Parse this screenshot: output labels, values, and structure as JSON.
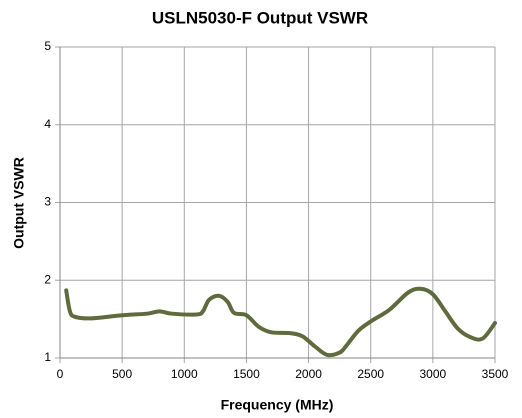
{
  "chart_data": {
    "type": "line",
    "title": "USLN5030-F Output VSWR",
    "x_label": "Frequency (MHz)",
    "y_label": "Output  VSWR",
    "x": [
      50,
      80,
      120,
      250,
      500,
      700,
      800,
      900,
      1100,
      1150,
      1200,
      1280,
      1350,
      1400,
      1500,
      1600,
      1700,
      1850,
      1950,
      2050,
      2150,
      2250,
      2300,
      2400,
      2500,
      2650,
      2800,
      2900,
      3000,
      3100,
      3200,
      3300,
      3400,
      3500
    ],
    "series": [
      {
        "name": "Output VSWR",
        "color": "#5f6b3c",
        "values": [
          1.87,
          1.6,
          1.53,
          1.51,
          1.55,
          1.57,
          1.6,
          1.57,
          1.56,
          1.6,
          1.75,
          1.8,
          1.72,
          1.58,
          1.55,
          1.4,
          1.33,
          1.32,
          1.28,
          1.15,
          1.04,
          1.07,
          1.15,
          1.35,
          1.47,
          1.62,
          1.84,
          1.89,
          1.82,
          1.6,
          1.38,
          1.27,
          1.25,
          1.45
        ]
      }
    ],
    "xlim": [
      0,
      3500
    ],
    "xticks": [
      0,
      500,
      1000,
      1500,
      2000,
      2500,
      3000,
      3500
    ],
    "ylim": [
      1,
      5
    ],
    "yticks": [
      1,
      2,
      3,
      4,
      5
    ],
    "grid": true
  }
}
